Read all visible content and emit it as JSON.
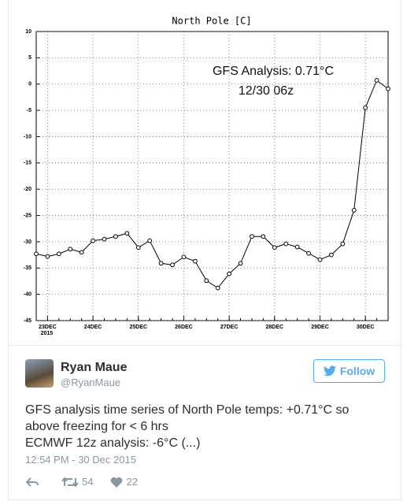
{
  "chart_data": {
    "type": "line",
    "title": "North Pole [C]",
    "annotations": [
      "GFS Analysis:  0.71°C",
      "12/30 06z"
    ],
    "categories": [
      null,
      "23DEC",
      null,
      null,
      null,
      "24DEC",
      null,
      null,
      null,
      "25DEC",
      null,
      null,
      null,
      "26DEC",
      null,
      null,
      null,
      "27DEC",
      null,
      null,
      null,
      "28DEC",
      null,
      null,
      null,
      "29DEC",
      null,
      null,
      null,
      "30DEC",
      null,
      null
    ],
    "x_year": "2015",
    "values": [
      -32.3,
      -32.8,
      -32.3,
      -31.4,
      -32.0,
      -29.8,
      -29.5,
      -29.0,
      -28.4,
      -31.1,
      -29.8,
      -34.1,
      -34.4,
      -32.9,
      -33.7,
      -37.4,
      -38.8,
      -36.1,
      -34.1,
      -29.0,
      -29.0,
      -31.1,
      -30.4,
      -31.0,
      -32.2,
      -33.4,
      -32.5,
      -30.4,
      -24.0,
      -4.5,
      0.71,
      -0.9
    ],
    "color": "#000000",
    "ylim": [
      -45,
      10
    ],
    "yticks": [
      -45,
      -40,
      -35,
      -30,
      -25,
      -20,
      -15,
      -10,
      -5,
      0,
      5,
      10
    ],
    "grid": true
  },
  "tweet": {
    "name": "Ryan Maue",
    "handle": "@RyanMaue",
    "follow": "Follow",
    "text": [
      "GFS analysis time series of North Pole temps: +0.71°C so above freezing for < 6 hrs",
      "ECMWF 12z analysis: -6°C (...)"
    ],
    "timestamp": "12:54 PM - 30 Dec 2015",
    "retweets": 54,
    "likes": 22
  }
}
